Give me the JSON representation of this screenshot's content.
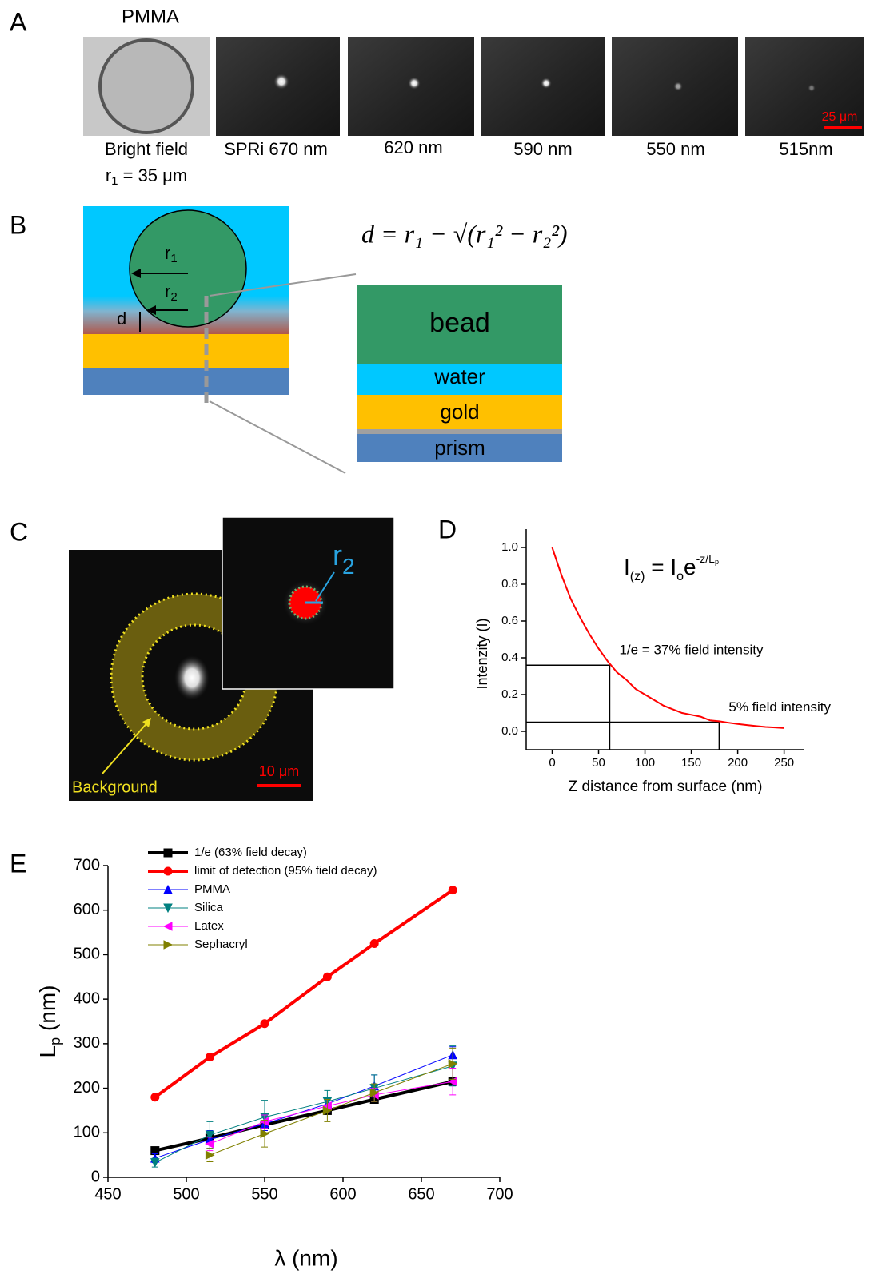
{
  "panel_labels": [
    "A",
    "B",
    "C",
    "D",
    "E"
  ],
  "panel_a": {
    "title": "PMMA",
    "captions": [
      "Bright field",
      "SPRi 670 nm",
      "620 nm",
      "590 nm",
      "550 nm",
      "515nm"
    ],
    "radius": [
      "r",
      "1",
      " = 35 μm"
    ],
    "scale_bar": "25 μm"
  },
  "panel_b": {
    "formula": "d = r₁ − √(r₁² − r₂²)",
    "r1": [
      "r",
      "1"
    ],
    "r2": [
      "r",
      "2"
    ],
    "d": "d",
    "layers": [
      "bead",
      "water",
      "gold",
      "prism"
    ]
  },
  "panel_c": {
    "r2": [
      "r",
      "2"
    ],
    "background": "Background",
    "scale_bar": "10 μm"
  },
  "chart_data": [
    {
      "type": "line",
      "equation": [
        "I",
        "(z)",
        " = I",
        "o",
        "e",
        "-z/L",
        "p"
      ],
      "x_label": "Z distance from surface (nm)",
      "y_label": "Intenzity (I)",
      "x": [
        0,
        10,
        20,
        30,
        40,
        50,
        60,
        70,
        80,
        90,
        100,
        110,
        120,
        130,
        140,
        150,
        160,
        170,
        180,
        190,
        200,
        210,
        220,
        230,
        240,
        250
      ],
      "values": [
        1.0,
        0.85,
        0.72,
        0.62,
        0.53,
        0.45,
        0.38,
        0.32,
        0.28,
        0.23,
        0.2,
        0.17,
        0.14,
        0.12,
        0.1,
        0.09,
        0.08,
        0.06,
        0.055,
        0.047,
        0.04,
        0.034,
        0.029,
        0.024,
        0.021,
        0.018
      ],
      "color": "#ff0000",
      "xlim": [
        -28,
        271
      ],
      "ylim": [
        -0.1,
        1.1
      ],
      "xticks": [
        0,
        50,
        100,
        150,
        200,
        250
      ],
      "yticks": [
        {
          "value": 0,
          "label": "0.0"
        },
        0.2,
        0.4,
        0.6,
        0.8,
        {
          "value": 1,
          "label": "1.0"
        }
      ],
      "reference_lines": [
        {
          "x": 62,
          "y": 0.36,
          "label": "1/e = 37% field intensity"
        },
        {
          "x": 180,
          "y": 0.05,
          "label": "5% field intensity"
        }
      ]
    },
    {
      "type": "line",
      "x_label": "λ (nm)",
      "y_label": [
        "L",
        "p",
        " (nm)"
      ],
      "x": [
        480,
        515,
        550,
        590,
        620,
        670
      ],
      "series": [
        {
          "name": "1/e (63% field decay)",
          "color": "#000000",
          "marker": "square",
          "line_width": 4,
          "values": [
            60,
            88,
            118,
            150,
            175,
            215
          ]
        },
        {
          "name": "limit of detection (95% field decay)",
          "color": "#ff0000",
          "marker": "circle",
          "line_width": 4,
          "values": [
            180,
            270,
            345,
            450,
            525,
            645
          ]
        },
        {
          "name": "PMMA",
          "color": "#0000ff",
          "marker": "triangle-up",
          "line_width": 1,
          "values": [
            43,
            85,
            120,
            165,
            205,
            275
          ],
          "errors": [
            10,
            20,
            15,
            12,
            25,
            18
          ]
        },
        {
          "name": "Silica",
          "color": "#008080",
          "marker": "triangle-down",
          "line_width": 1,
          "values": [
            33,
            95,
            135,
            170,
            200,
            250
          ],
          "errors": [
            10,
            30,
            38,
            25,
            30,
            45
          ]
        },
        {
          "name": "Latex",
          "color": "#ff00ff",
          "marker": "triangle-left",
          "line_width": 1,
          "values": [
            null,
            75,
            125,
            160,
            185,
            215
          ],
          "errors": [
            null,
            15,
            15,
            15,
            15,
            30
          ]
        },
        {
          "name": "Sephacryl",
          "color": "#808000",
          "marker": "triangle-right",
          "line_width": 1,
          "values": [
            null,
            50,
            98,
            150,
            190,
            255
          ],
          "errors": [
            null,
            15,
            30,
            25,
            20,
            35
          ]
        }
      ],
      "xlim": [
        450,
        700
      ],
      "ylim": [
        0,
        700
      ],
      "xticks": [
        450,
        500,
        550,
        600,
        650,
        700
      ],
      "yticks": [
        0,
        100,
        200,
        300,
        400,
        500,
        600,
        700
      ],
      "legend": "upper left"
    }
  ]
}
